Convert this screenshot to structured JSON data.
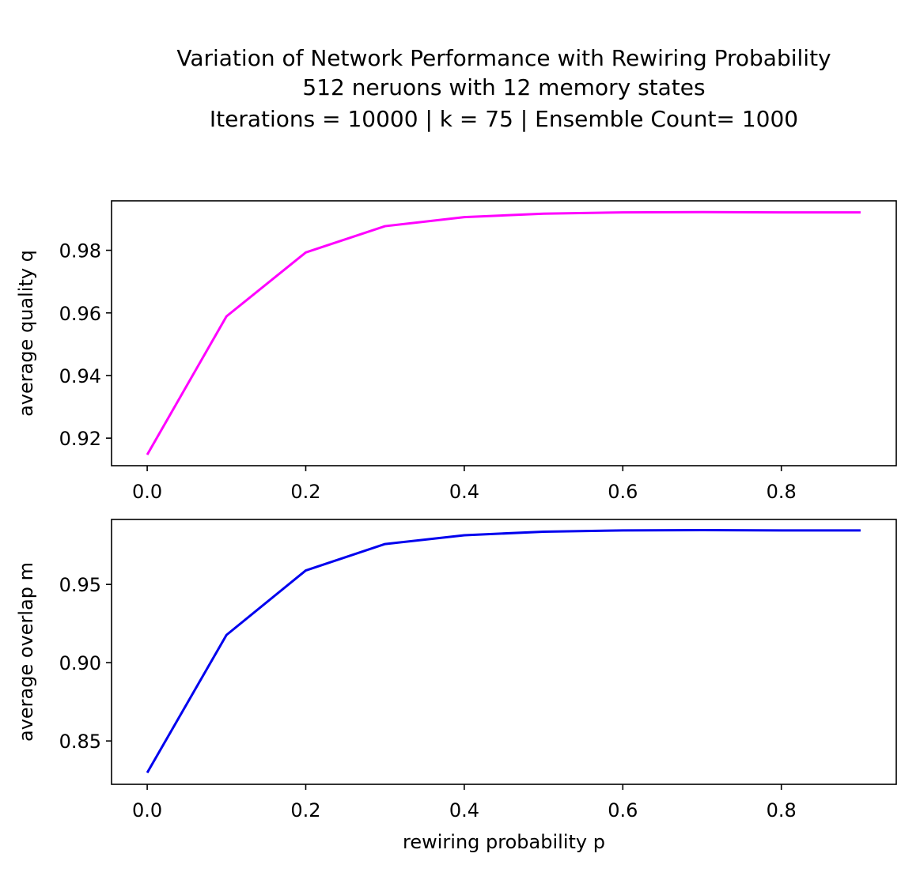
{
  "title_lines": [
    "Variation of Network Performance with Rewiring Probability",
    "512 neruons with 12 memory states",
    "Iterations = 10000 |  k = 75 | Ensemble Count= 1000"
  ],
  "chart_data": [
    {
      "type": "line",
      "xlabel": "",
      "ylabel": "average quality q",
      "xlim": [
        -0.045,
        0.945
      ],
      "ylim": [
        0.9112,
        0.9958
      ],
      "xticks": [
        0.0,
        0.2,
        0.4,
        0.6,
        0.8
      ],
      "xtick_labels": [
        "0.0",
        "0.2",
        "0.4",
        "0.6",
        "0.8"
      ],
      "yticks": [
        0.92,
        0.94,
        0.96,
        0.98
      ],
      "ytick_labels": [
        "0.92",
        "0.94",
        "0.96",
        "0.98"
      ],
      "grid": false,
      "series": [
        {
          "color": "#ff00ff",
          "x": [
            0.0,
            0.1,
            0.2,
            0.3,
            0.4,
            0.5,
            0.6,
            0.7,
            0.8,
            0.9
          ],
          "y": [
            0.9147,
            0.9589,
            0.9793,
            0.9877,
            0.9906,
            0.9917,
            0.9921,
            0.9922,
            0.9921,
            0.9921
          ]
        }
      ]
    },
    {
      "type": "line",
      "xlabel": "rewiring probability p",
      "ylabel": "average overlap m",
      "xlim": [
        -0.045,
        0.945
      ],
      "ylim": [
        0.8223,
        0.9915
      ],
      "xticks": [
        0.0,
        0.2,
        0.4,
        0.6,
        0.8
      ],
      "xtick_labels": [
        "0.0",
        "0.2",
        "0.4",
        "0.6",
        "0.8"
      ],
      "yticks": [
        0.85,
        0.9,
        0.95
      ],
      "ytick_labels": [
        "0.85",
        "0.90",
        "0.95"
      ],
      "grid": false,
      "series": [
        {
          "color": "#0000ee",
          "x": [
            0.0,
            0.1,
            0.2,
            0.3,
            0.4,
            0.5,
            0.6,
            0.7,
            0.8,
            0.9
          ],
          "y": [
            0.8297,
            0.9177,
            0.9589,
            0.9758,
            0.9814,
            0.9837,
            0.9845,
            0.9847,
            0.9845,
            0.9845
          ]
        }
      ]
    }
  ]
}
